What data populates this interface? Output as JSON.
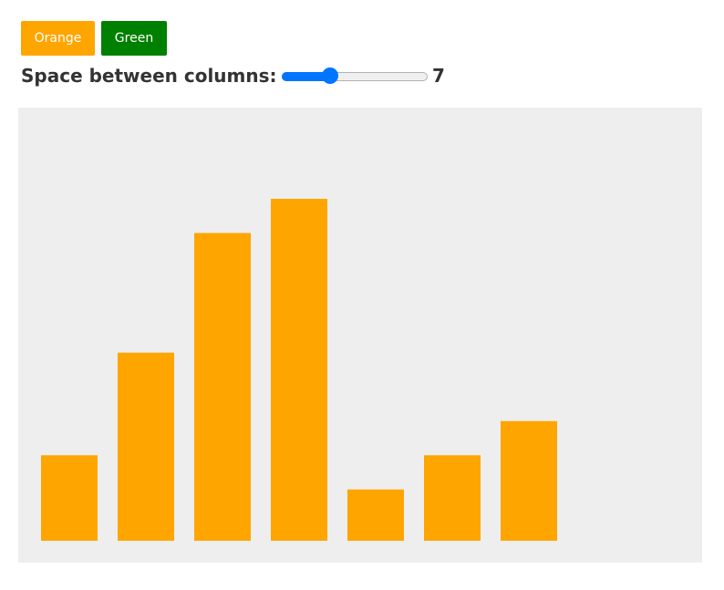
{
  "buttons": {
    "orange_label": "Orange",
    "green_label": "Green"
  },
  "spacing_control": {
    "label": "Space between columns:",
    "value": "7",
    "fraction": 0.31
  },
  "colors": {
    "orange": "#ffa500",
    "green": "#008000",
    "chart_background": "#eeeeee",
    "slider_accent": "#0075ff"
  },
  "chart_data": {
    "type": "bar",
    "values": [
      25,
      55,
      90,
      100,
      15,
      25,
      35
    ],
    "ylim": [
      0,
      100
    ],
    "bar_color": "#ffa500"
  }
}
